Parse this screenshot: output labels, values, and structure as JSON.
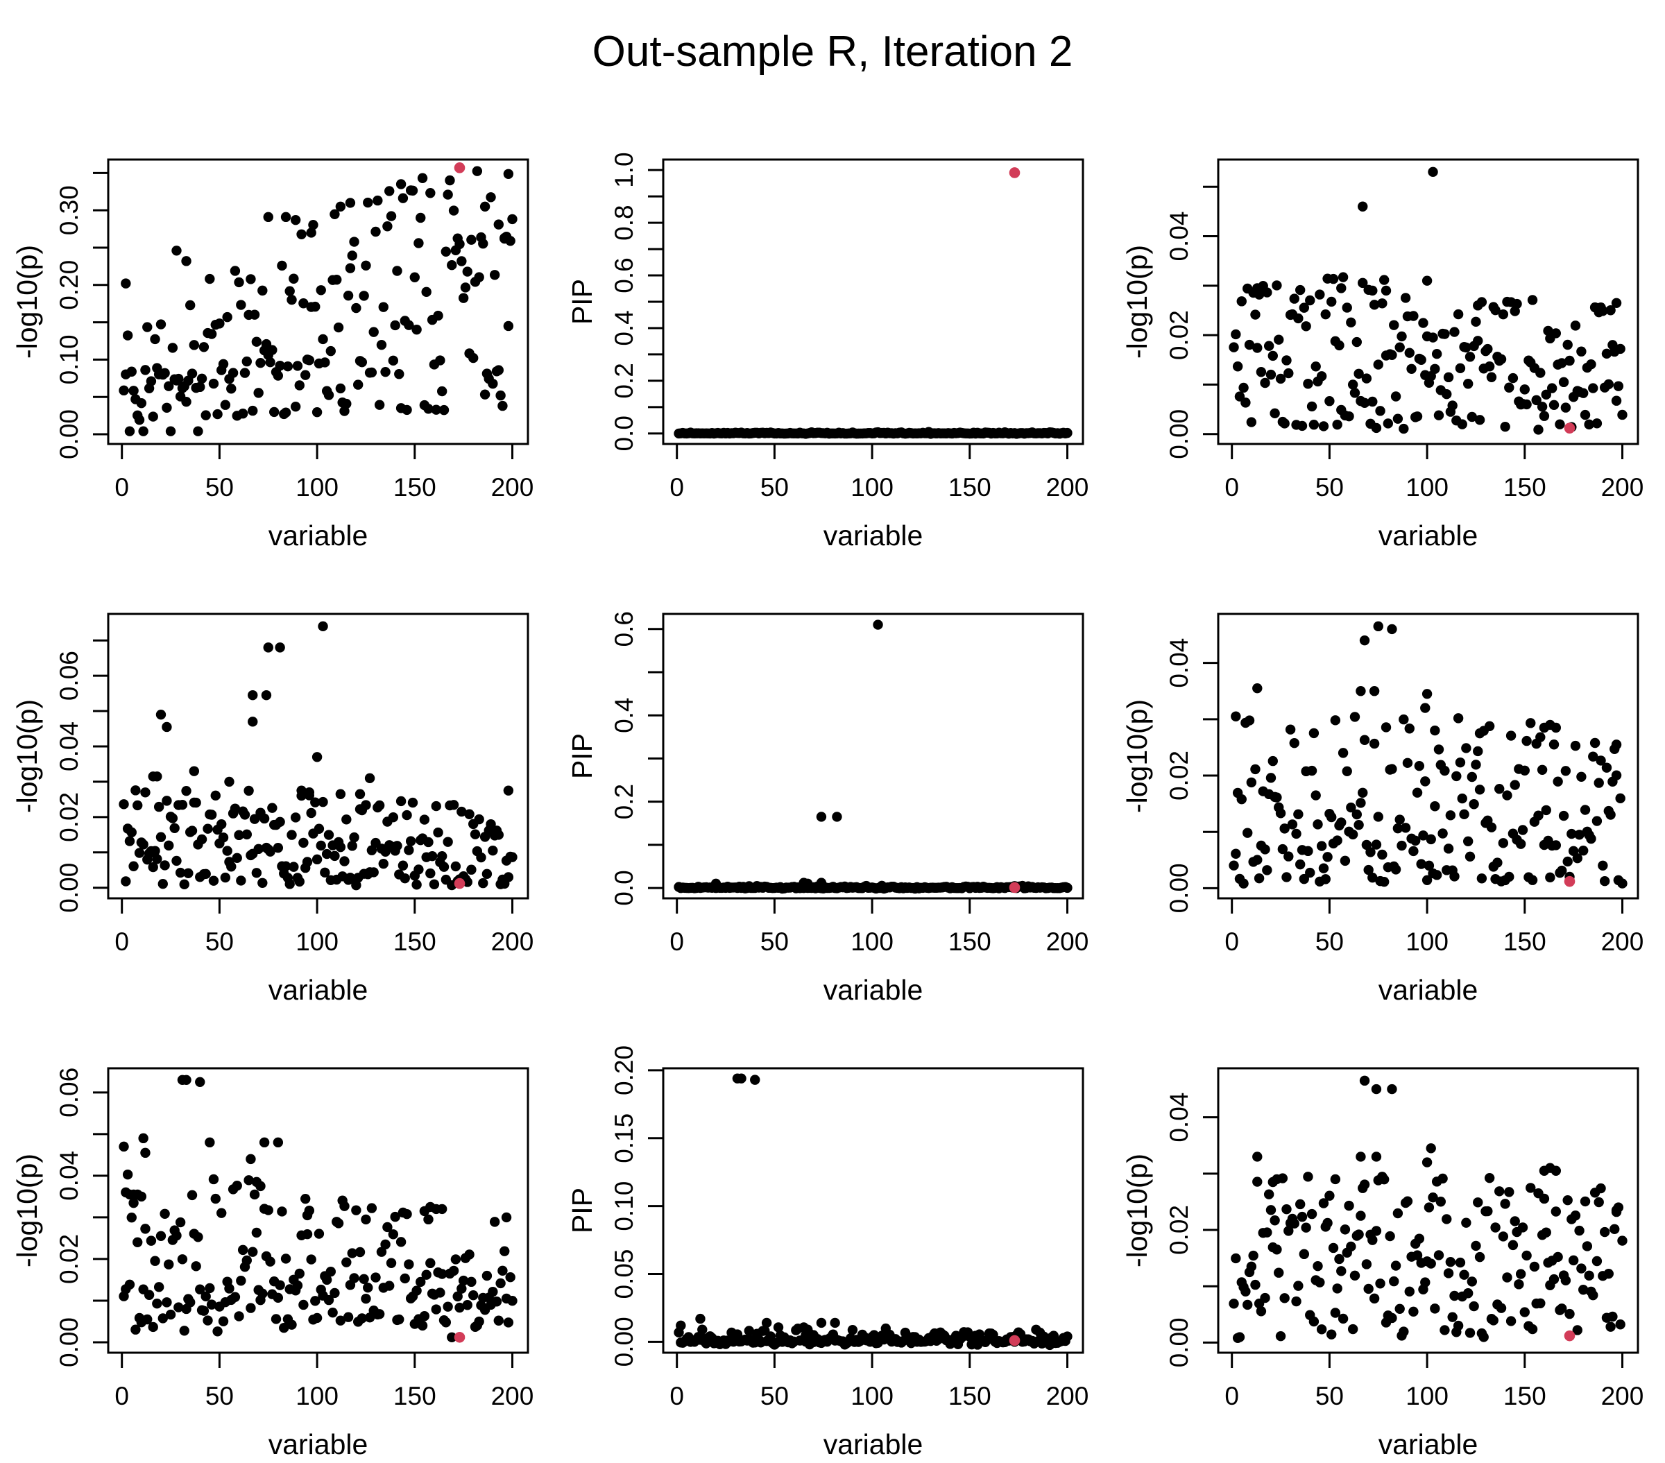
{
  "title": "Out-sample R, Iteration 2",
  "colors": {
    "point": "#000000",
    "highlight": "#D23C58",
    "axis": "#000000",
    "background": "#ffffff"
  },
  "chart_data": [
    {
      "type": "scatter",
      "row": 1,
      "col": 1,
      "xlabel": "variable",
      "ylabel": "-log10(p)",
      "n": 200,
      "seed": 11,
      "xlim": [
        -7,
        208
      ],
      "ylim": [
        -0.013,
        0.368
      ],
      "xticks": [
        0,
        50,
        100,
        150,
        200
      ],
      "xtick_labels": [
        "0",
        "50",
        "100",
        "150",
        "200"
      ],
      "yticks": [
        0,
        0.05,
        0.1,
        0.15,
        0.2,
        0.25,
        0.3,
        0.35
      ],
      "ytick_labels": [
        "0.00",
        "",
        "0.10",
        "",
        "0.20",
        "",
        "0.30",
        ""
      ],
      "model": {
        "kind": "trend",
        "a": 0.055,
        "b": 0.00125,
        "spread": 0.105,
        "clip": [
          0.004,
          0.3525
        ],
        "floor": {
          "p": 0.33,
          "lo": 0.01,
          "hi": 0.09,
          "b": 0.00012
        }
      },
      "key_points": [
        [
          2,
          0.202
        ],
        [
          28,
          0.246
        ],
        [
          33,
          0.232
        ],
        [
          75,
          0.291
        ],
        [
          84,
          0.291
        ],
        [
          89,
          0.287
        ],
        [
          97,
          0.27
        ],
        [
          112,
          0.305
        ],
        [
          117,
          0.31
        ],
        [
          143,
          0.335
        ],
        [
          186,
          0.305
        ],
        [
          193,
          0.281
        ],
        [
          196,
          0.262
        ],
        [
          198,
          0.145
        ]
      ],
      "highlight": [
        173,
        0.357
      ]
    },
    {
      "type": "scatter",
      "row": 1,
      "col": 2,
      "xlabel": "variable",
      "ylabel": "PIP",
      "n": 200,
      "seed": 22,
      "xlim": [
        -7,
        208
      ],
      "ylim": [
        -0.04,
        1.04
      ],
      "xticks": [
        0,
        50,
        100,
        150,
        200
      ],
      "xtick_labels": [
        "0",
        "50",
        "100",
        "150",
        "200"
      ],
      "yticks": [
        0,
        0.1,
        0.2,
        0.3,
        0.4,
        0.5,
        0.6,
        0.7,
        0.8,
        0.9,
        1.0
      ],
      "ytick_labels": [
        "0.0",
        "",
        "0.2",
        "",
        "0.4",
        "",
        "0.6",
        "",
        "0.8",
        "",
        "1.0"
      ],
      "model": {
        "kind": "zero",
        "jitter": 0.006
      },
      "key_points": [],
      "highlight": [
        173,
        0.99
      ]
    },
    {
      "type": "scatter",
      "row": 1,
      "col": 3,
      "xlabel": "variable",
      "ylabel": "-log10(p)",
      "n": 200,
      "seed": 33,
      "xlim": [
        -7,
        208
      ],
      "ylim": [
        -0.002,
        0.0555
      ],
      "xticks": [
        0,
        50,
        100,
        150,
        200
      ],
      "xtick_labels": [
        "0",
        "50",
        "100",
        "150",
        "200"
      ],
      "yticks": [
        0,
        0.01,
        0.02,
        0.03,
        0.04,
        0.05
      ],
      "ytick_labels": [
        "0.00",
        "",
        "0.02",
        "",
        "0.04",
        ""
      ],
      "model": {
        "kind": "band",
        "lo": 0.0008,
        "hi": 0.0305,
        "pow": 1.25,
        "trend": -0.18
      },
      "key_points": [
        [
          103,
          0.053
        ],
        [
          67,
          0.046
        ],
        [
          100,
          0.031
        ],
        [
          56,
          0.0295
        ],
        [
          13,
          0.0295
        ],
        [
          72,
          0.029
        ],
        [
          79,
          0.029
        ],
        [
          126,
          0.026
        ],
        [
          197,
          0.0265
        ]
      ],
      "highlight": [
        173,
        0.0012
      ]
    },
    {
      "type": "scatter",
      "row": 2,
      "col": 1,
      "xlabel": "variable",
      "ylabel": "-log10(p)",
      "n": 200,
      "seed": 44,
      "xlim": [
        -7,
        208
      ],
      "ylim": [
        -0.003,
        0.0775
      ],
      "xticks": [
        0,
        50,
        100,
        150,
        200
      ],
      "xtick_labels": [
        "0",
        "50",
        "100",
        "150",
        "200"
      ],
      "yticks": [
        0,
        0.01,
        0.02,
        0.03,
        0.04,
        0.05,
        0.06,
        0.07
      ],
      "ytick_labels": [
        "0.00",
        "",
        "0.02",
        "",
        "0.04",
        "",
        "0.06",
        ""
      ],
      "model": {
        "kind": "band",
        "lo": 0.0006,
        "hi": 0.0265,
        "pow": 1.3,
        "trend": -0.12
      },
      "key_points": [
        [
          103,
          0.074
        ],
        [
          75,
          0.068
        ],
        [
          81,
          0.068
        ],
        [
          67,
          0.0545
        ],
        [
          74,
          0.0545
        ],
        [
          20,
          0.049
        ],
        [
          23,
          0.0455
        ],
        [
          67,
          0.047
        ],
        [
          100,
          0.037
        ],
        [
          37,
          0.033
        ],
        [
          127,
          0.031
        ],
        [
          55,
          0.03
        ],
        [
          16,
          0.0315
        ],
        [
          18,
          0.0315
        ],
        [
          92,
          0.0275
        ],
        [
          96,
          0.027
        ],
        [
          112,
          0.0265
        ],
        [
          122,
          0.0265
        ],
        [
          198,
          0.0275
        ]
      ],
      "highlight": [
        173,
        0.0012
      ]
    },
    {
      "type": "scatter",
      "row": 2,
      "col": 2,
      "xlabel": "variable",
      "ylabel": "PIP",
      "n": 200,
      "seed": 55,
      "xlim": [
        -7,
        208
      ],
      "ylim": [
        -0.024,
        0.635
      ],
      "xticks": [
        0,
        50,
        100,
        150,
        200
      ],
      "xtick_labels": [
        "0",
        "50",
        "100",
        "150",
        "200"
      ],
      "yticks": [
        0,
        0.1,
        0.2,
        0.3,
        0.4,
        0.5,
        0.6
      ],
      "ytick_labels": [
        "0.0",
        "",
        "0.2",
        "",
        "0.4",
        "",
        "0.6"
      ],
      "model": {
        "kind": "zero",
        "jitter": 0.006
      },
      "key_points": [
        [
          103,
          0.61
        ],
        [
          74,
          0.165
        ],
        [
          82,
          0.165
        ],
        [
          20,
          0.01
        ],
        [
          65,
          0.012
        ],
        [
          67,
          0.01
        ],
        [
          74,
          0.012
        ]
      ],
      "highlight": [
        173,
        0.001
      ]
    },
    {
      "type": "scatter",
      "row": 2,
      "col": 3,
      "xlabel": "variable",
      "ylabel": "-log10(p)",
      "n": 200,
      "seed": 66,
      "xlim": [
        -7,
        208
      ],
      "ylim": [
        -0.0018,
        0.0487
      ],
      "xticks": [
        0,
        50,
        100,
        150,
        200
      ],
      "xtick_labels": [
        "0",
        "50",
        "100",
        "150",
        "200"
      ],
      "yticks": [
        0,
        0.01,
        0.02,
        0.03,
        0.04
      ],
      "ytick_labels": [
        "0.00",
        "",
        "0.02",
        "",
        "0.04"
      ],
      "model": {
        "kind": "band",
        "lo": 0.0008,
        "hi": 0.0305,
        "pow": 1.15,
        "trend": 0
      },
      "key_points": [
        [
          75,
          0.0465
        ],
        [
          82,
          0.046
        ],
        [
          68,
          0.044
        ],
        [
          13,
          0.0355
        ],
        [
          66,
          0.035
        ],
        [
          73,
          0.035
        ],
        [
          100,
          0.0345
        ],
        [
          99,
          0.032
        ],
        [
          2,
          0.0305
        ],
        [
          127,
          0.0275
        ],
        [
          104,
          0.028
        ],
        [
          160,
          0.0285
        ],
        [
          163,
          0.029
        ],
        [
          166,
          0.0285
        ],
        [
          197,
          0.0255
        ]
      ],
      "highlight": [
        173,
        0.0012
      ]
    },
    {
      "type": "scatter",
      "row": 3,
      "col": 1,
      "xlabel": "variable",
      "ylabel": "-log10(p)",
      "n": 200,
      "seed": 77,
      "xlim": [
        -7,
        208
      ],
      "ylim": [
        -0.0025,
        0.0658
      ],
      "xticks": [
        0,
        50,
        100,
        150,
        200
      ],
      "xtick_labels": [
        "0",
        "50",
        "100",
        "150",
        "200"
      ],
      "yticks": [
        0,
        0.01,
        0.02,
        0.03,
        0.04,
        0.05,
        0.06
      ],
      "ytick_labels": [
        "0.00",
        "",
        "0.02",
        "",
        "0.04",
        "",
        "0.06"
      ],
      "model": {
        "kind": "trend",
        "a": 0.0275,
        "b": -8e-05,
        "spread": 0.017,
        "clip": [
          0.0012,
          0.0475
        ],
        "floor": {
          "p": 0.42,
          "lo": 0.002,
          "hi": 0.015,
          "b": 1e-05
        }
      },
      "key_points": [
        [
          31,
          0.063
        ],
        [
          33,
          0.063
        ],
        [
          40,
          0.0625
        ],
        [
          11,
          0.049
        ],
        [
          1,
          0.047
        ],
        [
          45,
          0.048
        ],
        [
          73,
          0.048
        ],
        [
          80,
          0.048
        ],
        [
          12,
          0.0455
        ],
        [
          2,
          0.036
        ],
        [
          4,
          0.0355
        ],
        [
          6,
          0.0355
        ],
        [
          8,
          0.0355
        ],
        [
          10,
          0.035
        ],
        [
          66,
          0.044
        ],
        [
          69,
          0.0385
        ],
        [
          71,
          0.0375
        ],
        [
          95,
          0.0305
        ],
        [
          125,
          0.0295
        ],
        [
          155,
          0.0315
        ],
        [
          158,
          0.0325
        ],
        [
          161,
          0.032
        ],
        [
          164,
          0.032
        ],
        [
          197,
          0.03
        ]
      ],
      "highlight": [
        173,
        0.0012
      ]
    },
    {
      "type": "scatter",
      "row": 3,
      "col": 2,
      "xlabel": "variable",
      "ylabel": "PIP",
      "n": 200,
      "seed": 88,
      "xlim": [
        -7,
        208
      ],
      "ylim": [
        -0.008,
        0.2015
      ],
      "xticks": [
        0,
        50,
        100,
        150,
        200
      ],
      "xtick_labels": [
        "0",
        "50",
        "100",
        "150",
        "200"
      ],
      "yticks": [
        0,
        0.05,
        0.1,
        0.15,
        0.2
      ],
      "ytick_labels": [
        "0.00",
        "0.05",
        "0.10",
        "0.15",
        "0.20"
      ],
      "model": {
        "kind": "zero",
        "jitter": 0.012
      },
      "key_points": [
        [
          31,
          0.194
        ],
        [
          33,
          0.194
        ],
        [
          40,
          0.193
        ],
        [
          12,
          0.017
        ],
        [
          2,
          0.012
        ],
        [
          46,
          0.014
        ],
        [
          74,
          0.014
        ],
        [
          81,
          0.014
        ],
        [
          13,
          0.009
        ],
        [
          66,
          0.005
        ],
        [
          68,
          0.006
        ],
        [
          70,
          0.005
        ]
      ],
      "highlight": [
        173,
        0.001
      ]
    },
    {
      "type": "scatter",
      "row": 3,
      "col": 3,
      "xlabel": "variable",
      "ylabel": "-log10(p)",
      "n": 200,
      "seed": 99,
      "xlim": [
        -7,
        208
      ],
      "ylim": [
        -0.0018,
        0.0487
      ],
      "xticks": [
        0,
        50,
        100,
        150,
        200
      ],
      "xtick_labels": [
        "0",
        "50",
        "100",
        "150",
        "200"
      ],
      "yticks": [
        0,
        0.01,
        0.02,
        0.03,
        0.04
      ],
      "ytick_labels": [
        "0.00",
        "",
        "0.02",
        "",
        "0.04"
      ],
      "model": {
        "kind": "band",
        "lo": 0.0008,
        "hi": 0.0295,
        "pow": 1.15,
        "trend": 0
      },
      "key_points": [
        [
          68,
          0.0465
        ],
        [
          74,
          0.045
        ],
        [
          82,
          0.045
        ],
        [
          13,
          0.033
        ],
        [
          66,
          0.033
        ],
        [
          74,
          0.033
        ],
        [
          102,
          0.0345
        ],
        [
          100,
          0.032
        ],
        [
          53,
          0.029
        ],
        [
          21,
          0.0285
        ],
        [
          23,
          0.029
        ],
        [
          160,
          0.0305
        ],
        [
          163,
          0.031
        ],
        [
          166,
          0.0305
        ],
        [
          197,
          0.0235
        ]
      ],
      "highlight": [
        173,
        0.0012
      ]
    }
  ]
}
